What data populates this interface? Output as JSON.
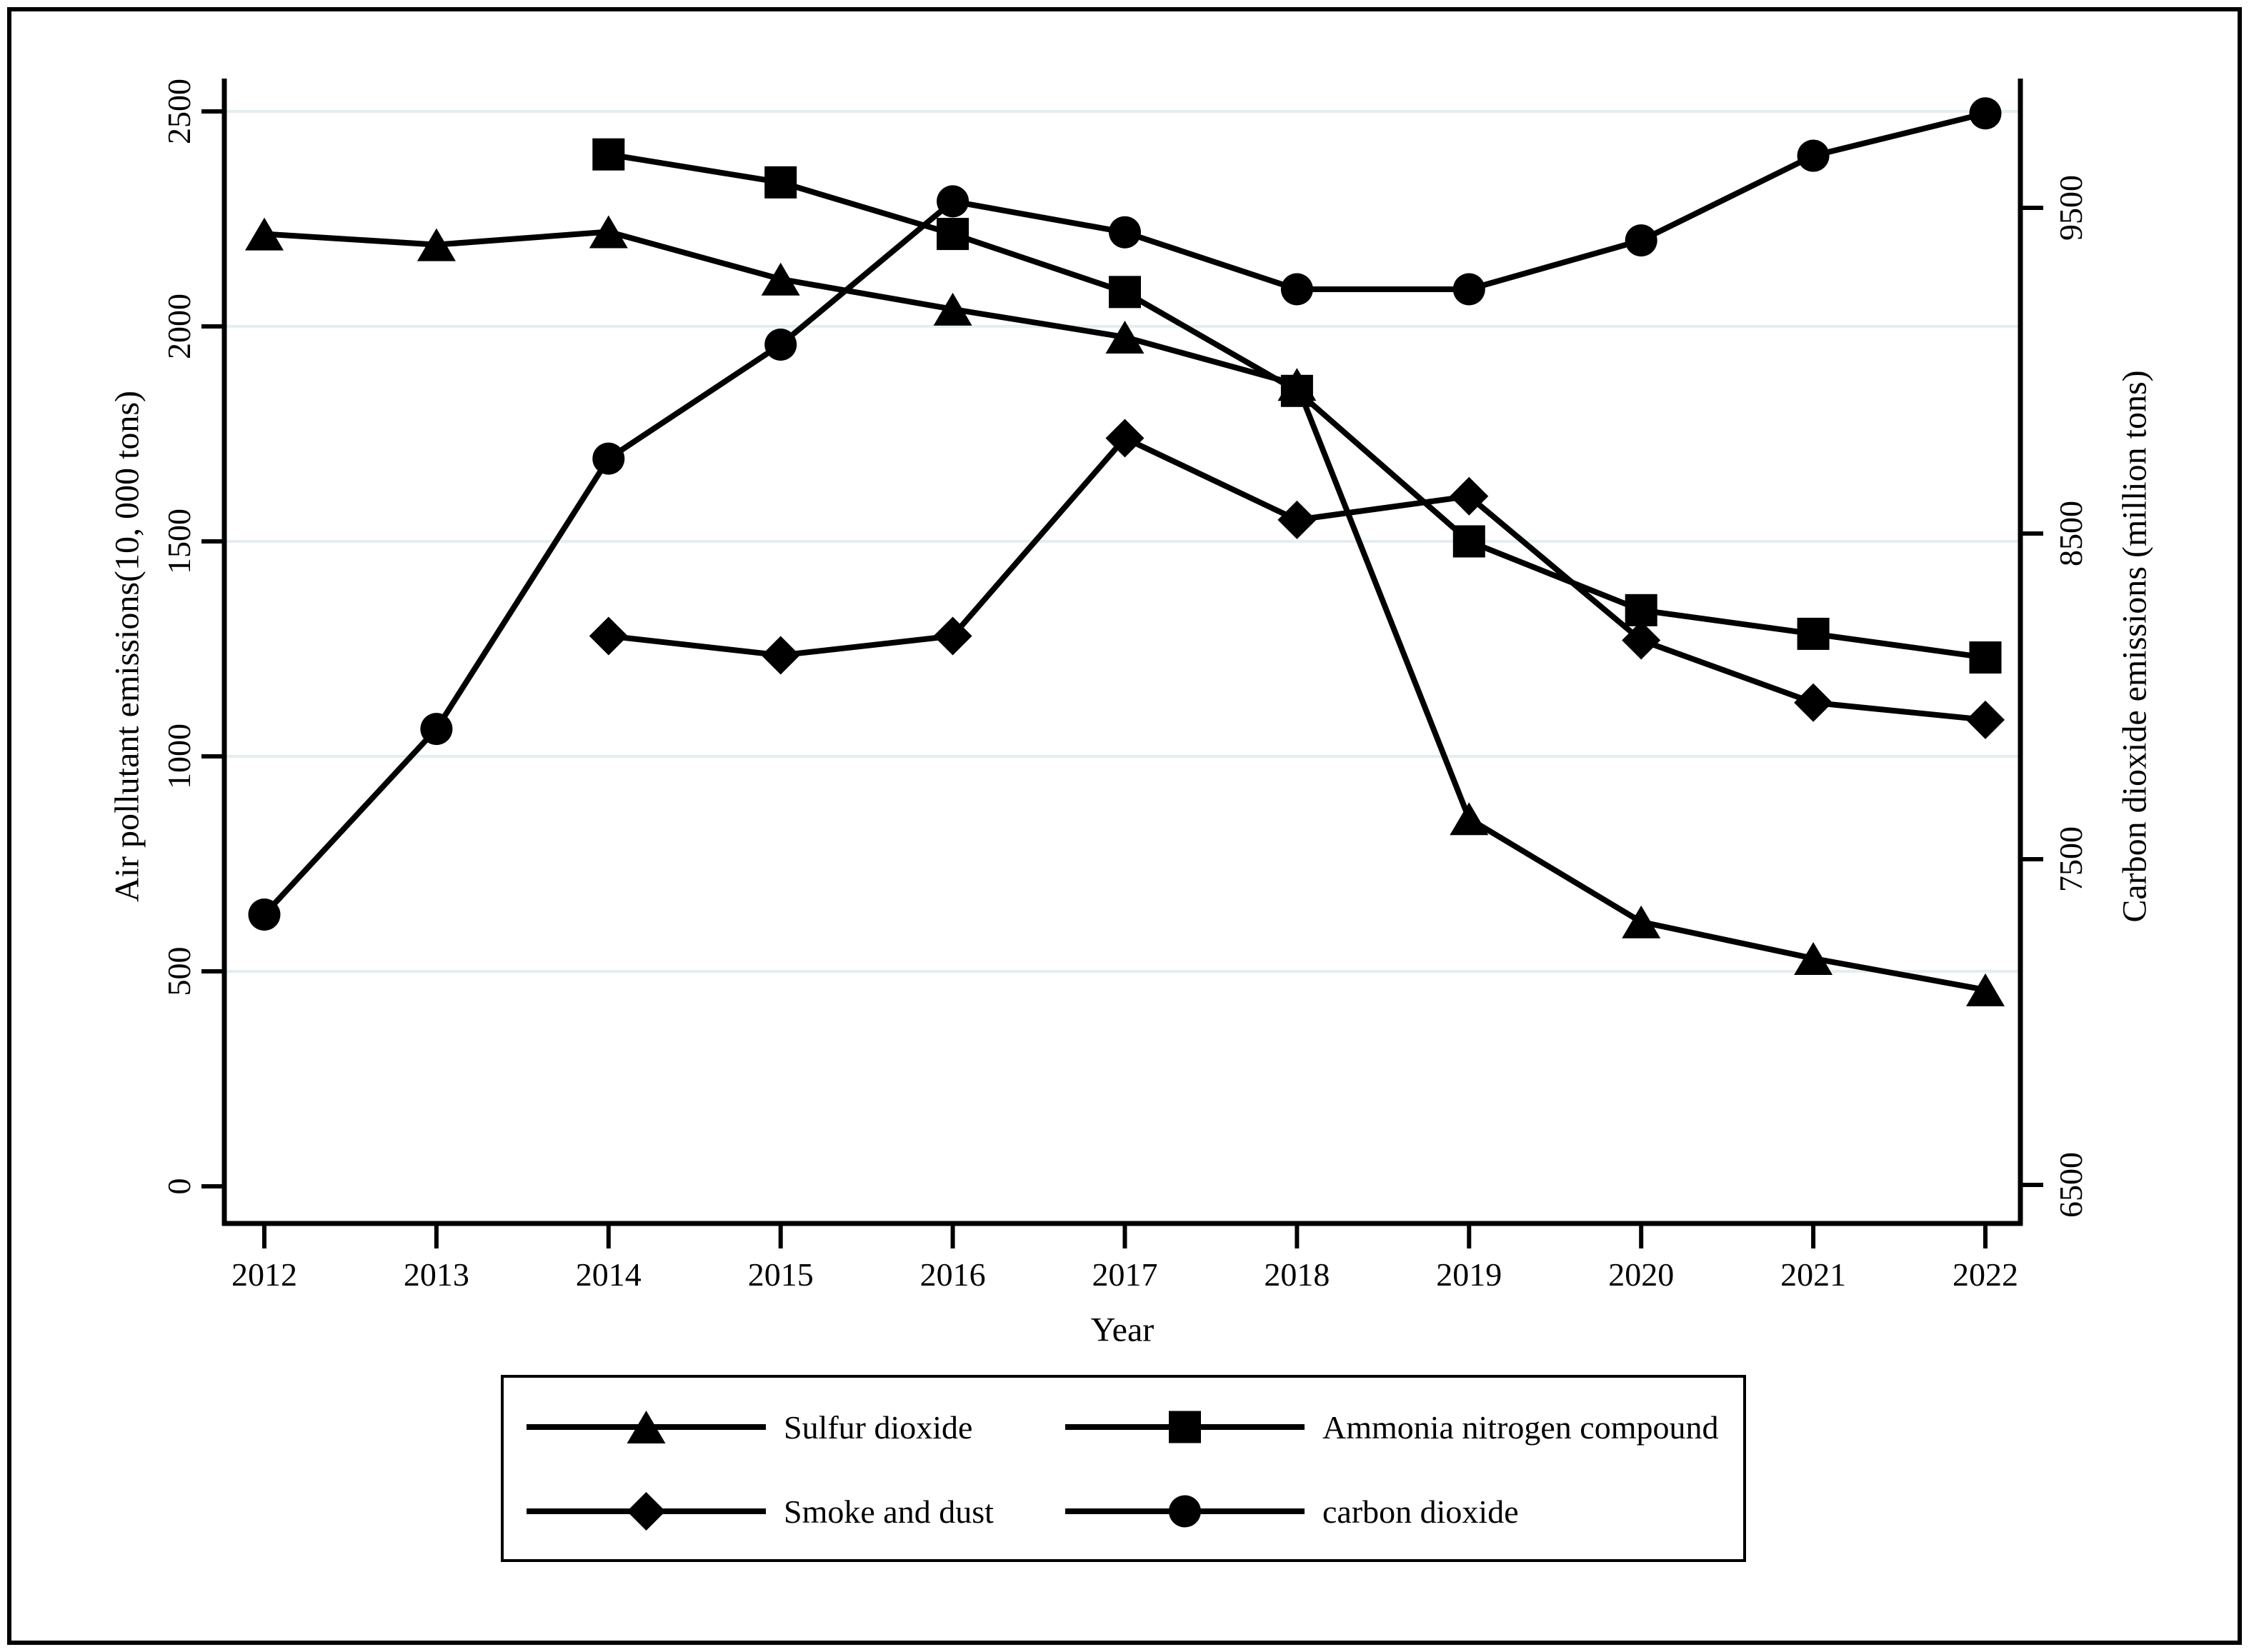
{
  "figure": {
    "background": "#ffffff",
    "line_color": "#000000",
    "gridline_color": "#e3eef0",
    "x_axis": {
      "title": "Year",
      "tick_labels": [
        "2012",
        "2013",
        "2014",
        "2015",
        "2016",
        "2017",
        "2018",
        "2019",
        "2020",
        "2021",
        "2022"
      ]
    },
    "left_axis": {
      "title": "Air pollutant emissions(10, 000 tons)",
      "tick_labels": [
        "0",
        "500",
        "1000",
        "1500",
        "2000",
        "2500"
      ],
      "tick_values": [
        0,
        500,
        1000,
        1500,
        2000,
        2500
      ]
    },
    "right_axis": {
      "title": "Carbon dioxide emissions (million tons)",
      "tick_labels": [
        "6500",
        "7500",
        "8500",
        "9500"
      ],
      "tick_values": [
        6500,
        7500,
        8500,
        9500
      ]
    }
  },
  "chart_data": {
    "type": "line",
    "title": "",
    "xlabel": "Year",
    "ylabel_left": "Air pollutant emissions(10, 000 tons)",
    "ylabel_right": "Carbon dioxide emissions (million tons)",
    "x": [
      2012,
      2013,
      2014,
      2015,
      2016,
      2017,
      2018,
      2019,
      2020,
      2021,
      2022
    ],
    "left_ylim": [
      0,
      2580
    ],
    "right_ylim": [
      6500,
      9800
    ],
    "grid": "horizontal-light",
    "legend_position": "bottom-box",
    "series": [
      {
        "name": "Sulfur dioxide",
        "axis": "left",
        "marker": "triangle",
        "color": "#000000",
        "values": [
          2215,
          2190,
          2220,
          2110,
          2040,
          1975,
          1865,
          855,
          615,
          530,
          457
        ]
      },
      {
        "name": "Ammonia nitrogen compound",
        "axis": "left",
        "marker": "square",
        "color": "#000000",
        "values": [
          null,
          null,
          2400,
          2335,
          2215,
          2080,
          1850,
          1500,
          1340,
          1285,
          1230
        ]
      },
      {
        "name": "Smoke and dust",
        "axis": "left",
        "marker": "diamond",
        "color": "#000000",
        "values": [
          null,
          null,
          1280,
          1235,
          1280,
          1740,
          1550,
          1605,
          1270,
          1125,
          1085
        ]
      },
      {
        "name": "carbon dioxide",
        "axis": "right",
        "marker": "circle",
        "color": "#000000",
        "values": [
          7330,
          7900,
          8730,
          9080,
          9520,
          9425,
          9250,
          9250,
          9400,
          9660,
          9790
        ]
      }
    ]
  },
  "legend": {
    "rows": [
      [
        {
          "marker": "triangle",
          "label": "Sulfur dioxide"
        },
        {
          "marker": "square",
          "label": "Ammonia nitrogen compound"
        }
      ],
      [
        {
          "marker": "diamond",
          "label": "Smoke and dust"
        },
        {
          "marker": "circle",
          "label": "carbon dioxide"
        }
      ]
    ]
  }
}
